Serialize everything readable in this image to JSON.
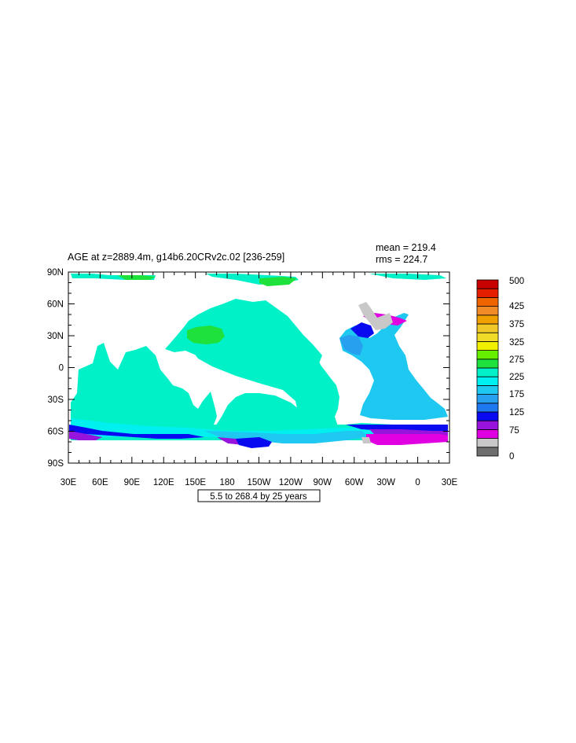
{
  "title": "AGE at z=2889.4m, g14b6.20CRv2c.02 [236-259]",
  "stats": {
    "mean": "mean = 219.4",
    "rms": "rms = 224.7"
  },
  "contour_info": "5.5 to 268.4 by 25 years",
  "x_ticks": [
    "30E",
    "60E",
    "90E",
    "120E",
    "150E",
    "180",
    "150W",
    "120W",
    "90W",
    "60W",
    "30W",
    "0",
    "30E"
  ],
  "y_ticks": [
    "90N",
    "60N",
    "30N",
    "0",
    "30S",
    "60S",
    "90S"
  ],
  "colorbar": {
    "labels": [
      "500",
      "425",
      "375",
      "325",
      "275",
      "225",
      "175",
      "125",
      "75",
      "0"
    ],
    "colors": [
      "#6e6e6e",
      "#c8c8c8",
      "#e100e1",
      "#9614dc",
      "#0a0af0",
      "#1e78f0",
      "#28a0f0",
      "#1ec8f0",
      "#00f0f0",
      "#00f0c8",
      "#1ee13c",
      "#64f000",
      "#f0f000",
      "#f0dc28",
      "#f0c828",
      "#f0a000",
      "#f08c28",
      "#f06400",
      "#e61e00",
      "#c80000"
    ]
  },
  "map_colors": {
    "ocean_main": "#00f0c8",
    "ocean_light": "#00f0f0",
    "pacific_north": "#1ee13c",
    "deep_blue": "#1ec8f0",
    "blue": "#28a0f0",
    "dark_blue": "#0a0af0",
    "purple": "#9614dc",
    "magenta": "#e100e1",
    "gray": "#c8c8c8",
    "dark_gray": "#6e6e6e"
  }
}
